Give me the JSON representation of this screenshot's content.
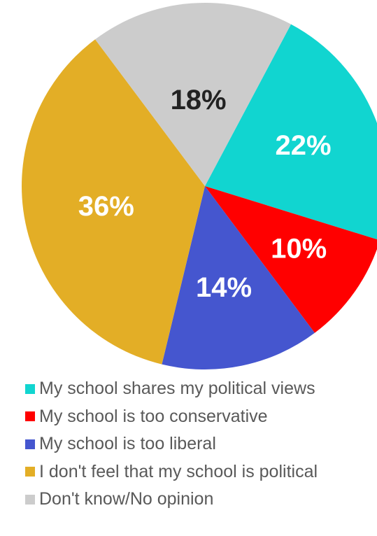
{
  "chart_data": {
    "type": "pie",
    "categories": [
      "My school shares my political views",
      "My school is too conservative",
      "My school is too liberal",
      "I don't feel that my school is political",
      "Don't know/No opinion"
    ],
    "values": [
      22,
      10,
      14,
      36,
      18
    ],
    "value_labels": [
      "22%",
      "10%",
      "14%",
      "36%",
      "18%"
    ],
    "colors": [
      "#11d5d0",
      "#ff0000",
      "#4556cf",
      "#e3ae26",
      "#cccccc"
    ],
    "label_colors": [
      "#ffffff",
      "#ffffff",
      "#ffffff",
      "#ffffff",
      "#222222"
    ],
    "start_angle_deg": 28,
    "direction": "clockwise",
    "legend_position": "bottom"
  }
}
